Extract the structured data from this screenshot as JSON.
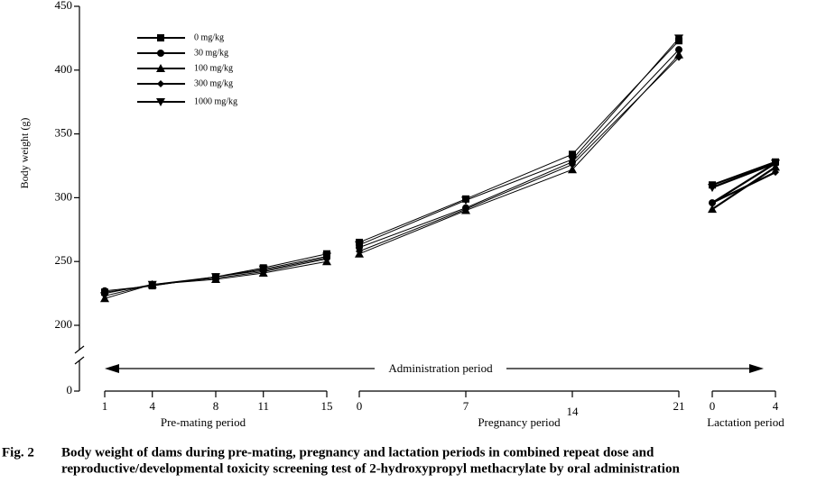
{
  "chart_data": {
    "type": "line",
    "y_label": "Body weight (g)",
    "ylim": [
      0,
      450
    ],
    "yticks": [
      0,
      200,
      250,
      300,
      350,
      400,
      450
    ],
    "axis_break": [
      0,
      200
    ],
    "annotation": "Administration period",
    "groups": [
      {
        "label": "Pre-mating period",
        "x": [
          1,
          4,
          8,
          11,
          15
        ]
      },
      {
        "label": "Pregnancy period",
        "x": [
          0,
          7,
          14,
          21
        ]
      },
      {
        "label": "Lactation period",
        "x": [
          0,
          4
        ]
      }
    ],
    "series": [
      {
        "name": "0  mg/kg",
        "color": "#000000",
        "marker": "square",
        "values": [
          [
            226,
            231,
            238,
            245,
            256
          ],
          [
            265,
            299,
            334,
            423
          ],
          [
            310,
            328
          ]
        ]
      },
      {
        "name": "30  mg/kg",
        "color": "#000000",
        "marker": "circle",
        "values": [
          [
            227,
            231,
            238,
            243,
            253
          ],
          [
            261,
            292,
            328,
            416
          ],
          [
            296,
            327
          ]
        ]
      },
      {
        "name": "100  mg/kg",
        "color": "#000000",
        "marker": "triangle",
        "values": [
          [
            221,
            232,
            236,
            241,
            250
          ],
          [
            256,
            290,
            322,
            412
          ],
          [
            291,
            324
          ]
        ]
      },
      {
        "name": "300  mg/kg",
        "color": "#000000",
        "marker": "diamond",
        "values": [
          [
            225,
            232,
            237,
            242,
            252
          ],
          [
            258,
            291,
            326,
            410
          ],
          [
            296,
            320
          ]
        ]
      },
      {
        "name": "1000  mg/kg",
        "color": "#000000",
        "marker": "triangle-down",
        "values": [
          [
            223,
            232,
            238,
            244,
            254
          ],
          [
            263,
            298,
            330,
            425
          ],
          [
            308,
            327
          ]
        ]
      }
    ],
    "caption": {
      "label": "Fig. 2",
      "lines": [
        "Body weight of dams during pre-mating, pregnancy and lactation periods in combined repeat dose and",
        "reproductive/developmental toxicity screening test of 2-hydroxypropyl methacrylate by oral administration"
      ]
    }
  }
}
